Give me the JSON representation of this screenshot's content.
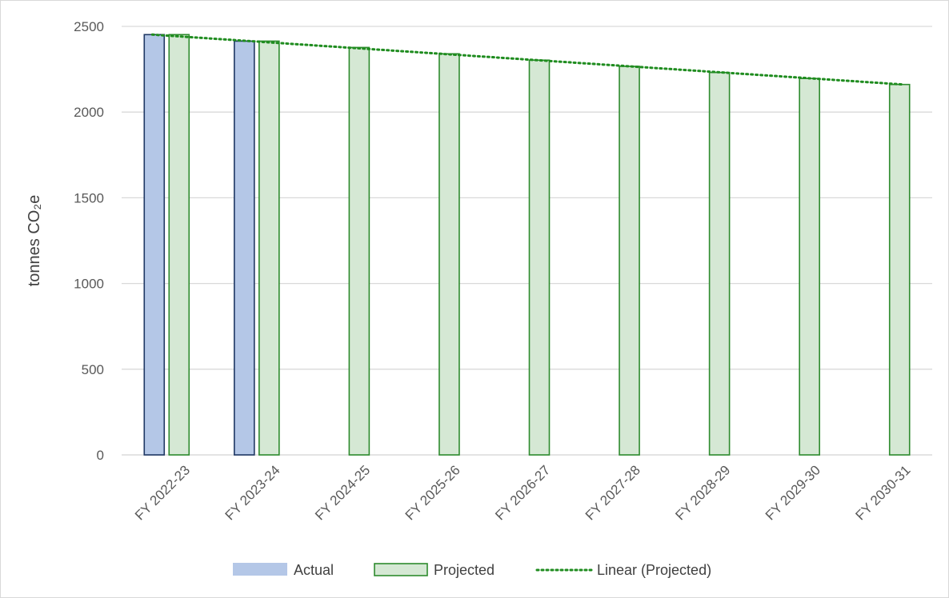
{
  "chart_data": {
    "type": "bar",
    "title": "",
    "xlabel": "",
    "ylabel": "tonnes CO₂e",
    "ylim": [
      0,
      2500
    ],
    "yticks": [
      0,
      500,
      1000,
      1500,
      2000,
      2500
    ],
    "grid": true,
    "legend_position": "bottom",
    "categories": [
      "FY 2022-23",
      "FY 2023-24",
      "FY 2024-25",
      "FY 2025-26",
      "FY 2026-27",
      "FY 2027-28",
      "FY 2028-29",
      "FY 2029-30",
      "FY 2030-31"
    ],
    "series": [
      {
        "name": "Actual",
        "fill": "#b4c7e7",
        "stroke": "#1f3864",
        "values": [
          2452,
          2414,
          null,
          null,
          null,
          null,
          null,
          null,
          null
        ]
      },
      {
        "name": "Projected",
        "fill": "#d5e8d4",
        "stroke": "#2e8b2e",
        "values": [
          2452,
          2414,
          2377,
          2340,
          2303,
          2267,
          2231,
          2196,
          2161
        ]
      }
    ],
    "trendline": {
      "name": "Linear (Projected)",
      "color": "#1f8c1f",
      "style": "dotted",
      "start": 2452,
      "end": 2161
    }
  }
}
